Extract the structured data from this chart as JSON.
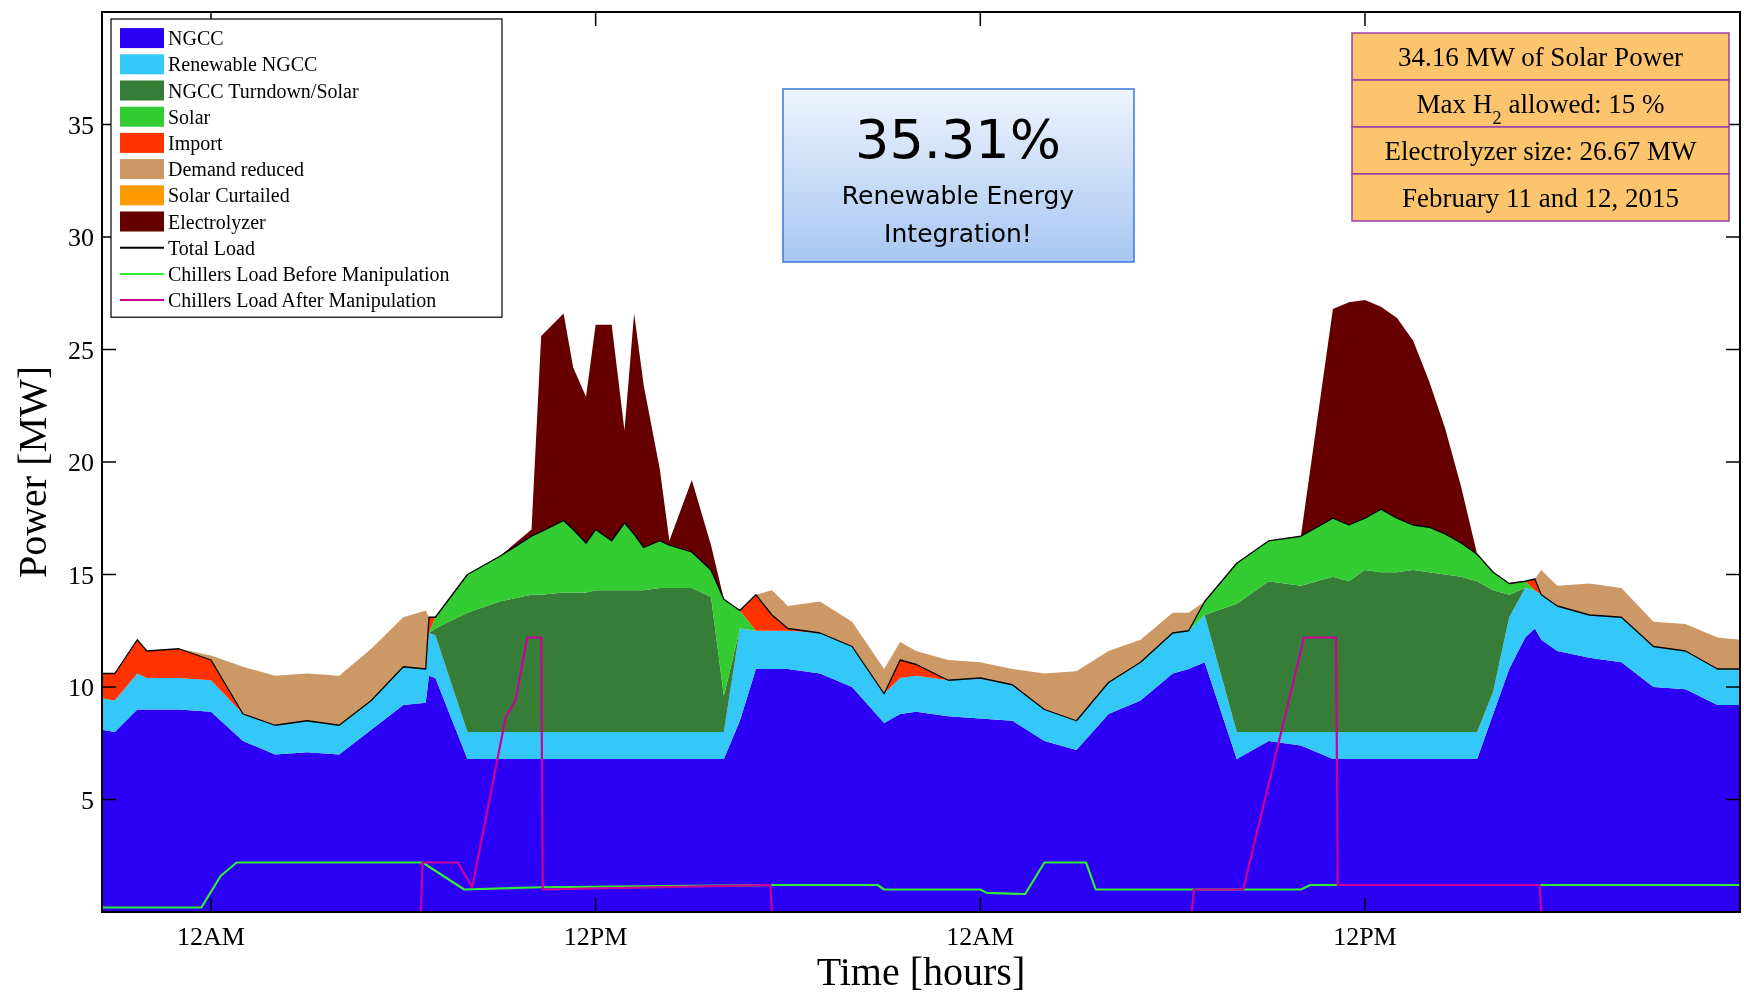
{
  "chart_data": {
    "type": "area",
    "stacked": true,
    "xlabel": "Time [hours]",
    "ylabel": "Power [MW]",
    "legend": "top left",
    "xlim": [
      "2015-02-10T20:36",
      "2015-02-12T23:42"
    ],
    "xticks": [
      {
        "value": "2015-02-11T00:00",
        "label": "12AM"
      },
      {
        "value": "2015-02-11T12:00",
        "label": "12PM"
      },
      {
        "value": "2015-02-12T00:00",
        "label": "12AM"
      },
      {
        "value": "2015-02-12T12:00",
        "label": "12PM"
      }
    ],
    "ylim": [
      0,
      40
    ],
    "yticks": [
      5,
      10,
      15,
      20,
      25,
      30,
      35
    ],
    "annotations": [
      "35.31%",
      "Renewable Energy\nIntegration!",
      "34.16 MW of Solar Power",
      "Max H$_{2}$ allowed: 15 %",
      "Electrolyzer size: 26.67 MW",
      "February 11 and 12, 2015"
    ],
    "x": [
      "2015-02-10T20:36",
      "2015-02-10T21:00",
      "2015-02-10T21:42",
      "2015-02-10T22:00",
      "2015-02-10T23:00",
      "2015-02-11T00:00",
      "2015-02-11T01:00",
      "2015-02-11T02:00",
      "2015-02-11T03:00",
      "2015-02-11T04:00",
      "2015-02-11T05:00",
      "2015-02-11T06:00",
      "2015-02-11T06:42",
      "2015-02-11T06:48",
      "2015-02-11T07:00",
      "2015-02-11T08:00",
      "2015-02-11T09:00",
      "2015-02-11T10:00",
      "2015-02-11T10:18",
      "2015-02-11T11:00",
      "2015-02-11T11:18",
      "2015-02-11T11:42",
      "2015-02-11T12:00",
      "2015-02-11T12:30",
      "2015-02-11T12:54",
      "2015-02-11T13:12",
      "2015-02-11T13:30",
      "2015-02-11T14:00",
      "2015-02-11T14:18",
      "2015-02-11T15:00",
      "2015-02-11T15:36",
      "2015-02-11T16:00",
      "2015-02-11T16:30",
      "2015-02-11T17:00",
      "2015-02-11T17:30",
      "2015-02-11T18:00",
      "2015-02-11T19:00",
      "2015-02-11T20:00",
      "2015-02-11T21:00",
      "2015-02-11T21:30",
      "2015-02-11T22:00",
      "2015-02-11T23:00",
      "2015-02-12T00:00",
      "2015-02-12T01:00",
      "2015-02-12T02:00",
      "2015-02-12T03:00",
      "2015-02-12T04:00",
      "2015-02-12T05:00",
      "2015-02-12T06:00",
      "2015-02-12T06:30",
      "2015-02-12T07:00",
      "2015-02-12T08:00",
      "2015-02-12T09:00",
      "2015-02-12T10:00",
      "2015-02-12T11:00",
      "2015-02-12T11:30",
      "2015-02-12T12:00",
      "2015-02-12T12:30",
      "2015-02-12T13:00",
      "2015-02-12T13:30",
      "2015-02-12T14:00",
      "2015-02-12T14:30",
      "2015-02-12T15:00",
      "2015-02-12T15:30",
      "2015-02-12T16:00",
      "2015-02-12T16:30",
      "2015-02-12T17:00",
      "2015-02-12T17:18",
      "2015-02-12T17:30",
      "2015-02-12T18:00",
      "2015-02-12T19:00",
      "2015-02-12T20:00",
      "2015-02-12T21:00",
      "2015-02-12T22:00",
      "2015-02-12T23:00",
      "2015-02-12T23:42"
    ],
    "series": [
      {
        "name": "NGCC",
        "color": "#2b00f5",
        "values": [
          8.1,
          8.0,
          9.0,
          9.0,
          9.0,
          8.9,
          7.6,
          7.0,
          7.1,
          7.0,
          8.1,
          9.2,
          9.3,
          10.5,
          10.4,
          6.8,
          6.8,
          6.8,
          6.8,
          6.8,
          6.8,
          6.8,
          6.8,
          6.8,
          6.8,
          6.8,
          6.8,
          6.8,
          6.8,
          6.8,
          6.8,
          6.8,
          8.5,
          10.8,
          10.8,
          10.8,
          10.6,
          10.0,
          8.4,
          8.8,
          8.9,
          8.7,
          8.6,
          8.5,
          7.6,
          7.2,
          8.8,
          9.4,
          10.6,
          10.8,
          11.1,
          6.8,
          7.6,
          7.4,
          6.8,
          6.8,
          6.8,
          6.8,
          6.8,
          6.8,
          6.8,
          6.8,
          6.8,
          6.8,
          8.8,
          10.8,
          12.2,
          12.6,
          12.1,
          11.6,
          11.3,
          11.1,
          10.0,
          9.9,
          9.2,
          9.2
        ]
      },
      {
        "name": "Renewable NGCC",
        "color": "#33c8f8",
        "values": [
          1.4,
          1.4,
          1.6,
          1.4,
          1.4,
          1.4,
          1.2,
          1.3,
          1.4,
          1.3,
          1.3,
          1.7,
          1.5,
          1.9,
          1.9,
          1.2,
          1.2,
          1.2,
          1.2,
          1.2,
          1.2,
          1.2,
          1.2,
          1.2,
          1.2,
          1.2,
          1.2,
          1.2,
          1.2,
          1.2,
          1.2,
          1.2,
          4.1,
          1.7,
          1.7,
          1.7,
          1.8,
          1.8,
          1.3,
          1.6,
          1.6,
          1.6,
          1.8,
          1.6,
          1.4,
          1.3,
          1.4,
          1.7,
          1.8,
          1.7,
          2.1,
          1.2,
          0.4,
          0.6,
          1.2,
          1.2,
          1.2,
          1.2,
          1.2,
          1.2,
          1.2,
          1.2,
          1.2,
          1.2,
          1.0,
          2.3,
          2.2,
          1.7,
          2.0,
          2.0,
          1.9,
          2.0,
          1.8,
          1.7,
          1.6,
          1.6
        ]
      },
      {
        "name": "NGCC Turndown/Solar",
        "color": "#367d37",
        "values": [
          null,
          null,
          null,
          null,
          null,
          null,
          null,
          null,
          null,
          null,
          null,
          null,
          null,
          0,
          0.3,
          5.3,
          5.8,
          6.1,
          6.1,
          6.2,
          6.2,
          6.2,
          6.3,
          6.3,
          6.3,
          6.3,
          6.3,
          6.4,
          6.4,
          6.4,
          6.0,
          1.6,
          0,
          null,
          null,
          null,
          null,
          null,
          null,
          null,
          null,
          null,
          null,
          null,
          null,
          null,
          null,
          null,
          null,
          null,
          0,
          5.7,
          6.7,
          6.5,
          6.9,
          6.7,
          7.2,
          7.1,
          7.1,
          7.2,
          7.1,
          7.0,
          6.9,
          6.7,
          4.5,
          1.0,
          0,
          null,
          null,
          null,
          null,
          null,
          null,
          null,
          null,
          null
        ]
      },
      {
        "name": "Solar",
        "color": "#33cc33",
        "values": [
          null,
          null,
          null,
          null,
          null,
          null,
          null,
          null,
          null,
          null,
          null,
          null,
          null,
          0,
          0.5,
          1.7,
          2.0,
          2.6,
          2.8,
          3.2,
          2.8,
          2.2,
          2.7,
          2.2,
          3.0,
          2.5,
          1.9,
          2.1,
          1.9,
          1.6,
          1.2,
          4.3,
          0.8,
          0,
          null,
          null,
          null,
          null,
          null,
          null,
          null,
          null,
          null,
          null,
          null,
          null,
          null,
          null,
          null,
          0,
          0.6,
          1.8,
          1.8,
          2.2,
          2.6,
          2.5,
          2.3,
          2.8,
          2.4,
          2.0,
          2.0,
          1.8,
          1.5,
          1.2,
          0.8,
          0.5,
          0.3,
          0,
          null,
          null,
          null,
          null,
          null,
          null,
          null,
          null
        ]
      },
      {
        "name": "Import",
        "color": "#ff3300",
        "values": [
          1.1,
          1.2,
          1.5,
          1.2,
          1.3,
          0.9,
          0,
          null,
          null,
          null,
          null,
          null,
          0,
          0.7,
          0,
          null,
          null,
          null,
          null,
          null,
          null,
          null,
          null,
          null,
          null,
          null,
          null,
          null,
          null,
          null,
          null,
          null,
          0,
          1.6,
          0.7,
          0.1,
          0,
          null,
          0,
          0.8,
          0.5,
          0,
          null,
          null,
          null,
          null,
          null,
          null,
          null,
          null,
          null,
          null,
          null,
          null,
          null,
          null,
          null,
          null,
          null,
          null,
          null,
          null,
          null,
          null,
          null,
          null,
          0,
          0.5,
          0,
          null,
          null,
          null,
          null,
          null,
          null,
          null
        ]
      },
      {
        "name": "Demand reduced",
        "color": "#cc9966",
        "values": [
          null,
          null,
          null,
          null,
          0,
          0.2,
          2.1,
          2.2,
          2.1,
          2.2,
          2.3,
          2.2,
          2.6,
          0,
          null,
          null,
          null,
          null,
          null,
          null,
          null,
          null,
          null,
          null,
          null,
          null,
          null,
          null,
          null,
          null,
          null,
          null,
          null,
          0,
          1.1,
          1.0,
          1.4,
          1.1,
          1.1,
          0.8,
          0.6,
          0.9,
          0.7,
          0.7,
          1.6,
          2.2,
          1.4,
          1.0,
          0.9,
          0.8,
          0,
          null,
          null,
          null,
          null,
          null,
          null,
          null,
          null,
          null,
          null,
          null,
          null,
          null,
          null,
          null,
          null,
          0,
          1.1,
          0.9,
          1.4,
          1.3,
          1.1,
          1.2,
          1.4,
          1.3
        ]
      },
      {
        "name": "Solar Curtailed",
        "color": "#ff9900",
        "values": [
          null,
          null,
          null,
          null,
          null,
          null,
          null,
          null,
          null,
          null,
          null,
          null,
          null,
          null,
          null,
          null,
          null,
          null,
          null,
          null,
          null,
          null,
          null,
          null,
          null,
          null,
          null,
          null,
          null,
          null,
          null,
          null,
          null,
          null,
          null,
          null,
          null,
          null,
          null,
          null,
          null,
          null,
          null,
          null,
          null,
          null,
          null,
          null,
          null,
          null,
          null,
          null,
          null,
          null,
          null,
          null,
          null,
          null,
          null,
          null,
          null,
          null,
          null,
          null,
          null,
          null,
          null,
          null,
          null,
          null,
          null,
          null,
          null,
          null,
          null,
          null
        ]
      },
      {
        "name": "Electrolyzer",
        "color": "#660000",
        "values": [
          null,
          null,
          null,
          null,
          null,
          null,
          null,
          null,
          null,
          null,
          null,
          null,
          null,
          null,
          null,
          null,
          0,
          0.3,
          8.7,
          9.2,
          7.2,
          6.5,
          9.1,
          9.6,
          4.1,
          9.8,
          7.2,
          3.2,
          0.2,
          3.2,
          1.1,
          0,
          null,
          null,
          null,
          null,
          null,
          null,
          null,
          null,
          null,
          null,
          null,
          null,
          null,
          null,
          null,
          null,
          null,
          null,
          null,
          null,
          null,
          0,
          9.3,
          9.9,
          9.7,
          9.0,
          8.9,
          8.2,
          6.5,
          4.7,
          2.5,
          0,
          null,
          null,
          null,
          null,
          null,
          null,
          null,
          null,
          null,
          null,
          null,
          null
        ]
      },
      {
        "name": "Total Load",
        "type": "line",
        "color": "#000000",
        "values": [
          10.6,
          10.6,
          12.1,
          11.6,
          11.7,
          11.2,
          8.8,
          8.3,
          8.5,
          8.3,
          9.4,
          10.9,
          10.8,
          13.1,
          13.1,
          15.0,
          15.8,
          16.7,
          16.9,
          17.4,
          17.0,
          16.4,
          17.0,
          16.5,
          17.3,
          16.8,
          16.2,
          16.5,
          16.3,
          16.0,
          15.2,
          13.9,
          13.4,
          14.1,
          13.2,
          12.6,
          12.4,
          11.8,
          9.7,
          11.2,
          11.0,
          10.3,
          10.4,
          10.1,
          9.0,
          8.5,
          10.2,
          11.1,
          12.4,
          12.5,
          13.8,
          15.5,
          16.5,
          16.7,
          17.5,
          17.2,
          17.5,
          17.9,
          17.5,
          17.2,
          17.1,
          16.8,
          16.4,
          15.9,
          15.1,
          14.6,
          14.7,
          14.8,
          14.1,
          13.6,
          13.2,
          13.1,
          11.8,
          11.6,
          10.8,
          10.8
        ]
      },
      {
        "name": "Chillers Load Before Manipulation",
        "type": "line",
        "color": "#33ee33",
        "x": [
          "2015-02-10T20:36",
          "2015-02-10T23:42",
          "2015-02-11T00:18",
          "2015-02-11T00:48",
          "2015-02-11T06:36",
          "2015-02-11T07:54",
          "2015-02-11T10:18",
          "2015-02-11T17:30",
          "2015-02-11T20:48",
          "2015-02-11T21:00",
          "2015-02-12T00:00",
          "2015-02-12T00:12",
          "2015-02-12T01:24",
          "2015-02-12T02:00",
          "2015-02-12T03:18",
          "2015-02-12T03:36",
          "2015-02-12T10:00",
          "2015-02-12T10:18",
          "2015-02-12T23:42"
        ],
        "values": [
          0.2,
          0.2,
          1.6,
          2.2,
          2.2,
          1.0,
          1.1,
          1.2,
          1.2,
          1.0,
          1.0,
          0.85,
          0.8,
          2.2,
          2.2,
          1.0,
          1.0,
          1.2,
          1.2
        ]
      },
      {
        "name": "Chillers Load After Manipulation",
        "type": "line",
        "color": "#cc0099",
        "x": [
          "2015-02-11T06:33",
          "2015-02-11T06:36",
          "2015-02-11T07:42",
          "2015-02-11T08:09",
          "2015-02-11T09:12",
          "2015-02-11T09:30",
          "2015-02-11T09:52",
          "2015-02-11T10:18",
          "2015-02-11T10:21",
          "2015-02-11T17:27",
          "2015-02-11T17:30",
          "2015-02-12T06:36",
          "2015-02-12T06:40",
          "2015-02-12T08:12",
          "2015-02-12T10:06",
          "2015-02-12T11:06",
          "2015-02-12T11:09",
          "2015-02-12T17:27",
          "2015-02-12T17:30"
        ],
        "values": [
          0,
          2.2,
          2.2,
          1.1,
          8.7,
          9.4,
          12.2,
          12.2,
          1.0,
          1.2,
          0,
          0,
          1.0,
          1.0,
          12.2,
          12.2,
          1.2,
          1.2,
          0
        ]
      }
    ]
  }
}
